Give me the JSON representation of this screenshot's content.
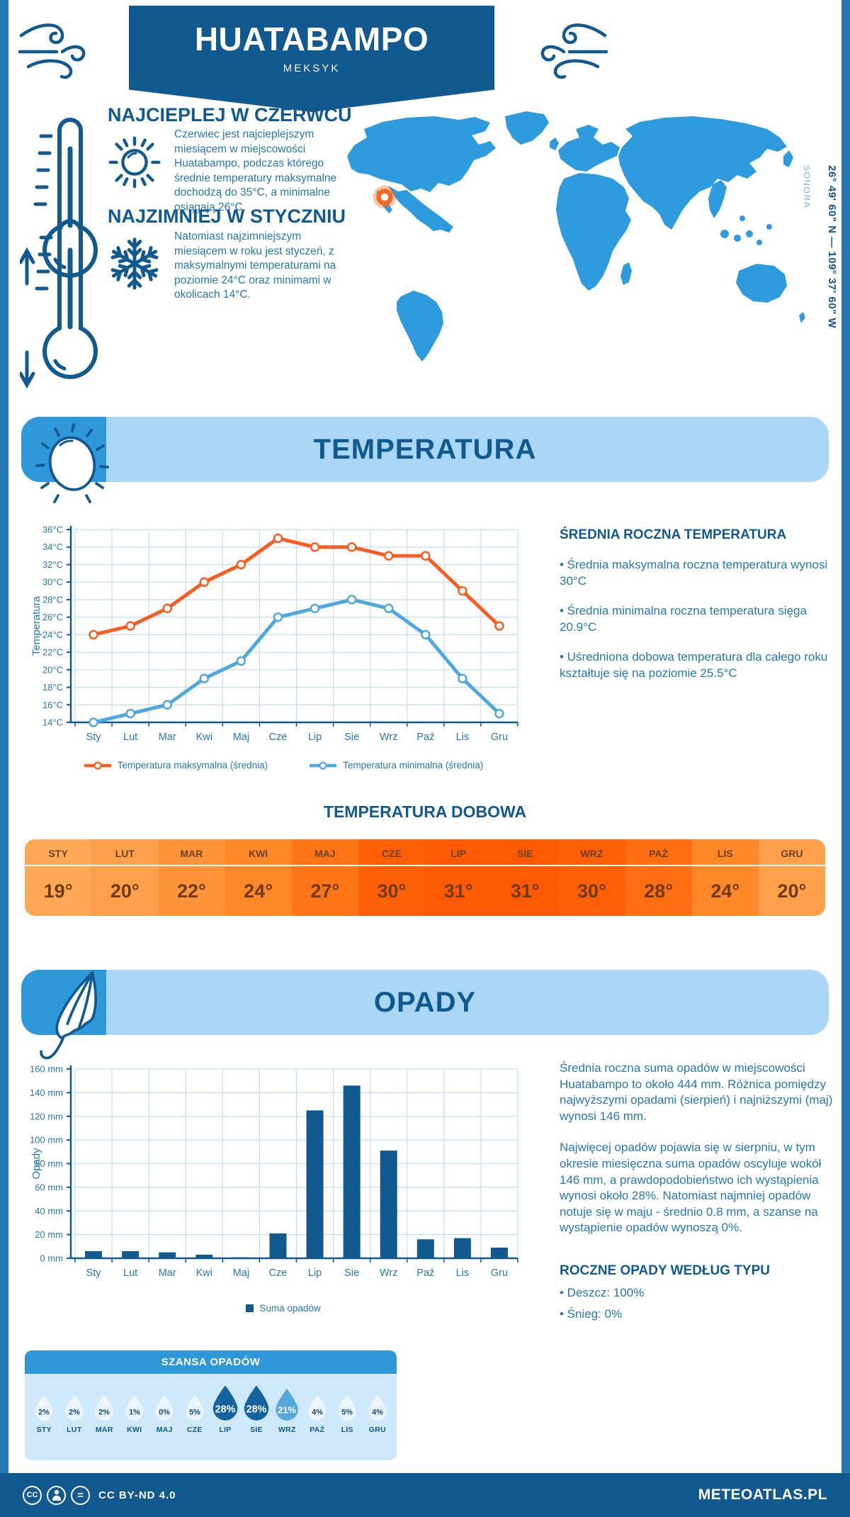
{
  "header": {
    "title": "HUATABAMPO",
    "subtitle": "MEKSYK"
  },
  "location": {
    "coordinates": "26° 49' 60\" N — 109° 37' 60\" W",
    "region": "SONORA"
  },
  "sections": {
    "warmest": {
      "heading": "NAJCIEPLEJ W CZERWCU",
      "text": "Czerwiec jest najcieplejszym miesiącem w miejscowości Huatabampo, podczas którego średnie temperatury maksymalne dochodzą do 35°C, a minimalne osiągają 26°C."
    },
    "coldest": {
      "heading": "NAJZIMNIEJ W STYCZNIU",
      "text": "Natomiast najzimniejszym miesiącem w roku jest styczeń, z maksymalnymi temperaturami na poziomie 24°C oraz minimami w okolicach 14°C."
    }
  },
  "temperature": {
    "banner": "TEMPERATURA",
    "summary_heading": "ŚREDNIA ROCZNA TEMPERATURA",
    "bullets": [
      "• Średnia maksymalna roczna temperatura wynosi 30°C",
      "• Średnia minimalna roczna temperatura sięga 20.9°C",
      "• Uśredniona dobowa temperatura dla całego roku kształtuje się na poziomie 25.5°C"
    ],
    "daily_heading": "TEMPERATURA DOBOWA",
    "daily": {
      "months": [
        "STY",
        "LUT",
        "MAR",
        "KWI",
        "MAJ",
        "CZE",
        "LIP",
        "SIE",
        "WRZ",
        "PAŹ",
        "LIS",
        "GRU"
      ],
      "values": [
        "19°",
        "20°",
        "22°",
        "24°",
        "27°",
        "30°",
        "31°",
        "31°",
        "30°",
        "28°",
        "24°",
        "20°"
      ],
      "cell_colors": [
        "#FFA856",
        "#FFA04B",
        "#FF9538",
        "#FF8828",
        "#FF7517",
        "#FF5F07",
        "#FF5A03",
        "#FF5A03",
        "#FF5F07",
        "#FF6E12",
        "#FF8828",
        "#FFA04B"
      ]
    }
  },
  "precipitation": {
    "banner": "OPADY",
    "paragraphs": [
      "Średnia roczna suma opadów w miejscowości Huatabampo to około 444 mm. Różnica pomiędzy najwyższymi opadami (sierpień) i najniższymi (maj) wynosi 146 mm.",
      "Najwięcej opadów pojawia się w sierpniu, w tym okresie miesięczna suma opadów oscyluje wokół 146 mm, a prawdopodobieństwo ich wystąpienia wynosi około 28%. Natomiast najmniej opadów notuje się w maju - średnio 0.8 mm, a szanse na wystąpienie opadów wynoszą 0%."
    ],
    "type_heading": "ROCZNE OPADY WEDŁUG TYPU",
    "types": [
      "• Deszcz: 100%",
      "• Śnieg: 0%"
    ],
    "chance": {
      "heading": "SZANSA OPADÓW",
      "months": [
        "STY",
        "LUT",
        "MAR",
        "KWI",
        "MAJ",
        "CZE",
        "LIP",
        "SIE",
        "WRZ",
        "PAŹ",
        "LIS",
        "GRU"
      ],
      "values": [
        "2%",
        "2%",
        "2%",
        "1%",
        "0%",
        "5%",
        "28%",
        "28%",
        "21%",
        "4%",
        "5%",
        "4%"
      ],
      "drop_colors": [
        "#EAF5FD",
        "#EAF5FD",
        "#EAF5FD",
        "#EAF5FD",
        "#EAF5FD",
        "#EAF5FD",
        "#15639E",
        "#15639E",
        "#58A7DA",
        "#EAF5FD",
        "#EAF5FD",
        "#EAF5FD"
      ]
    }
  },
  "chart_data": [
    {
      "type": "line",
      "title": "Temperatura",
      "categories": [
        "Sty",
        "Lut",
        "Mar",
        "Kwi",
        "Maj",
        "Cze",
        "Lip",
        "Sie",
        "Wrz",
        "Paź",
        "Lis",
        "Gru"
      ],
      "series": [
        {
          "name": "Temperatura maksymalna (średnia)",
          "values": [
            24,
            25,
            27,
            30,
            32,
            35,
            34,
            34,
            33,
            33,
            29,
            25
          ],
          "color": "#F95D22"
        },
        {
          "name": "Temperatura minimalna (średnia)",
          "values": [
            14,
            15,
            16,
            19,
            21,
            26,
            27,
            28,
            27,
            24,
            19,
            15
          ],
          "color": "#4FA8DE"
        }
      ],
      "xlabel": "",
      "ylabel": "Temperatura",
      "ylim": [
        14,
        36
      ],
      "ytick_step": 2,
      "ytick_suffix": "°C",
      "grid": true,
      "legend_position": "bottom"
    },
    {
      "type": "bar",
      "title": "Opady",
      "categories": [
        "Sty",
        "Lut",
        "Mar",
        "Kwi",
        "Maj",
        "Cze",
        "Lip",
        "Sie",
        "Wrz",
        "Paź",
        "Lis",
        "Gru"
      ],
      "series": [
        {
          "name": "Suma opadów",
          "values": [
            6,
            6,
            5,
            3,
            0.8,
            21,
            125,
            146,
            91,
            16,
            17,
            9
          ],
          "color": "#11598F"
        }
      ],
      "xlabel": "",
      "ylabel": "Opady",
      "ylim": [
        0,
        160
      ],
      "ytick_step": 20,
      "ytick_suffix": " mm",
      "grid": true,
      "legend_position": "bottom"
    }
  ],
  "colors": {
    "dark_blue": "#11598F",
    "medium_blue": "#2878B3",
    "banner_blue": "#A9D7F5",
    "sky_blue": "#2F98D9",
    "map_blue": "#2E9BDF",
    "chance_bg": "#CDE9FB",
    "grid_blue": "#C9DCEE",
    "orange_line": "#F95D22",
    "blue_line": "#4FA8DE",
    "marker_orange": "#F4681F"
  },
  "footer": {
    "license": "CC BY-ND 4.0",
    "brand": "METEOATLAS.PL"
  }
}
